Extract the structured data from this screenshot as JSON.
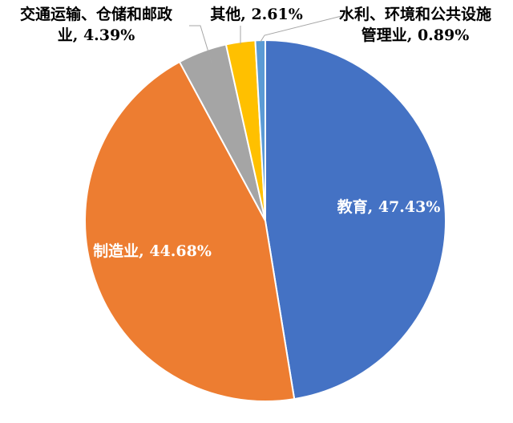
{
  "chart_data": {
    "type": "pie",
    "categories": [
      "教育",
      "制造业",
      "交通运输、仓储和邮政业",
      "其他",
      "水利、环境和公共设施管理业"
    ],
    "values": [
      47.43,
      44.68,
      4.39,
      2.61,
      0.89
    ],
    "value_labels": [
      "教育, 47.43%",
      "制造业, 44.68%",
      "交通运输、仓储和邮政业, 4.39%",
      "其他, 2.61%",
      "水利、环境和公共设施管理业, 0.89%"
    ],
    "colors": [
      "#4472c4",
      "#ed7d31",
      "#a5a5a5",
      "#ffc000",
      "#5b9bd5"
    ]
  }
}
